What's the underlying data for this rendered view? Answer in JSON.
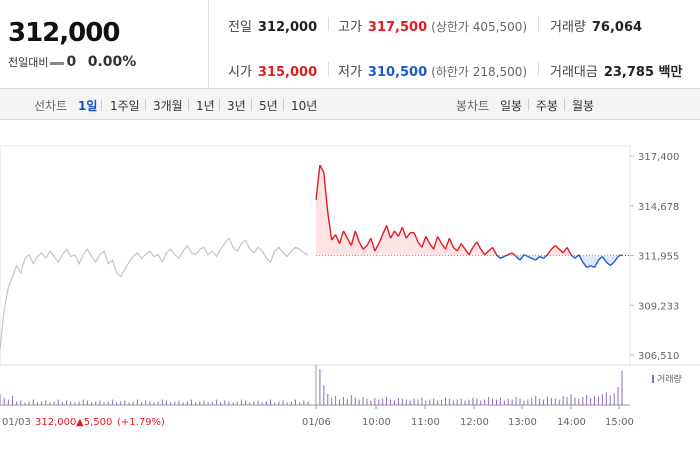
{
  "quote": {
    "price": "312,000",
    "change_label": "전일대비",
    "change_value": "0",
    "change_rate": "0.00%"
  },
  "stats": {
    "prev_close": {
      "label": "전일",
      "value": "312,000"
    },
    "high": {
      "label": "고가",
      "value": "317,500",
      "limit": "(상한가 405,500)"
    },
    "volume": {
      "label": "거래량",
      "value": "76,064"
    },
    "open": {
      "label": "시가",
      "value": "315,000"
    },
    "low": {
      "label": "저가",
      "value": "310,500",
      "limit": "(하한가 218,500)"
    },
    "amount": {
      "label": "거래대금",
      "value": "23,785 백만"
    }
  },
  "tabs": {
    "line_label": "선차트",
    "line_periods": [
      "1일",
      "1주일",
      "3개월",
      "1년",
      "3년",
      "5년",
      "10년"
    ],
    "active_period": "1일",
    "candle_label": "봉차트",
    "candle_periods": [
      "일봉",
      "주봉",
      "월봉"
    ]
  },
  "colors": {
    "up": "#e31b23",
    "down": "#1a5cc8",
    "prev": "#c4c4c4",
    "volume": "#8a6bbf",
    "up_fill": "#fde3e3",
    "down_fill": "#dde8f8"
  },
  "chart_data": {
    "type": "line",
    "ylim": [
      306510,
      317400
    ],
    "y_ticks": [
      "317,400",
      "314,678",
      "311,955",
      "309,233",
      "306,510"
    ],
    "x_ticks": [
      "01/06",
      "10:00",
      "11:00",
      "12:00",
      "13:00",
      "14:00",
      "15:00"
    ],
    "baseline": 311955,
    "prev_day": {
      "date": "01/03",
      "close_label": "312,000",
      "change_label": "▲5,500",
      "rate_label": "(+1.79%)",
      "values": [
        306800,
        309000,
        310200,
        310800,
        311400,
        311000,
        311800,
        312000,
        311500,
        311900,
        312100,
        311800,
        312200,
        311900,
        311600,
        312000,
        312300,
        311900,
        312000,
        311500,
        312000,
        312300,
        311900,
        311600,
        312000,
        312200,
        311500,
        311700,
        311000,
        310800,
        311200,
        311600,
        311900,
        312100,
        311800,
        312000,
        312200,
        311900,
        312000,
        311600,
        312100,
        312300,
        312000,
        311800,
        312200,
        312500,
        312100,
        312000,
        312300,
        312400,
        312000,
        312200,
        311900,
        312300,
        312600,
        312900,
        312400,
        312200,
        312600,
        312800,
        312300,
        312100,
        312400,
        312200,
        311800,
        311600,
        312200,
        312400,
        312100,
        311900,
        312200,
        312400,
        312300,
        312100,
        312000
      ]
    },
    "today": {
      "values": [
        315000,
        316900,
        316500,
        314300,
        312800,
        313100,
        312600,
        313300,
        312900,
        312500,
        313300,
        312700,
        312300,
        312500,
        312900,
        312200,
        312600,
        313100,
        313600,
        312900,
        313300,
        313000,
        313500,
        312900,
        313200,
        313200,
        312700,
        312400,
        313000,
        312600,
        312300,
        313000,
        312600,
        312300,
        312900,
        312400,
        312200,
        312600,
        312300,
        312000,
        312400,
        312700,
        312300,
        312000,
        312200,
        312400,
        312000,
        311800,
        311900,
        312000,
        312100,
        311900,
        311700,
        312000,
        311900,
        311800,
        311700,
        311900,
        311800,
        312000,
        312300,
        312500,
        312300,
        312100,
        312400,
        312000,
        311800,
        312000,
        311600,
        311300,
        311400,
        311300,
        311700,
        311900,
        311600,
        311400,
        311600,
        311900,
        312000
      ]
    },
    "volume": {
      "legend": "거래량",
      "prev_day": [
        12,
        8,
        6,
        10,
        4,
        5,
        3,
        4,
        6,
        3,
        4,
        5,
        3,
        4,
        6,
        3,
        5,
        4,
        3,
        4,
        6,
        5,
        3,
        4,
        5,
        3,
        4,
        6,
        3,
        4,
        5,
        3,
        4,
        6,
        3,
        5,
        4,
        3,
        4,
        6,
        5,
        3,
        4,
        5,
        3,
        4,
        6,
        3,
        4,
        5,
        3,
        4,
        6,
        3,
        5,
        4,
        3,
        4,
        6,
        5,
        3,
        4,
        5,
        3,
        4,
        6,
        3,
        4,
        5,
        3,
        4,
        6,
        3,
        5,
        4
      ],
      "today": [
        14,
        40,
        22,
        12,
        8,
        10,
        6,
        9,
        7,
        11,
        8,
        6,
        9,
        7,
        5,
        8,
        6,
        7,
        9,
        6,
        5,
        8,
        7,
        6,
        5,
        7,
        6,
        8,
        5,
        6,
        7,
        5,
        6,
        8,
        7,
        5,
        6,
        7,
        5,
        6,
        8,
        7,
        5,
        6,
        9,
        7,
        6,
        8,
        5,
        7,
        6,
        9,
        7,
        5,
        6,
        8,
        10,
        7,
        6,
        9,
        8,
        7,
        6,
        10,
        9,
        12,
        8,
        7,
        9,
        11,
        8,
        10,
        9,
        12,
        14,
        11,
        13,
        20,
        38
      ]
    }
  }
}
